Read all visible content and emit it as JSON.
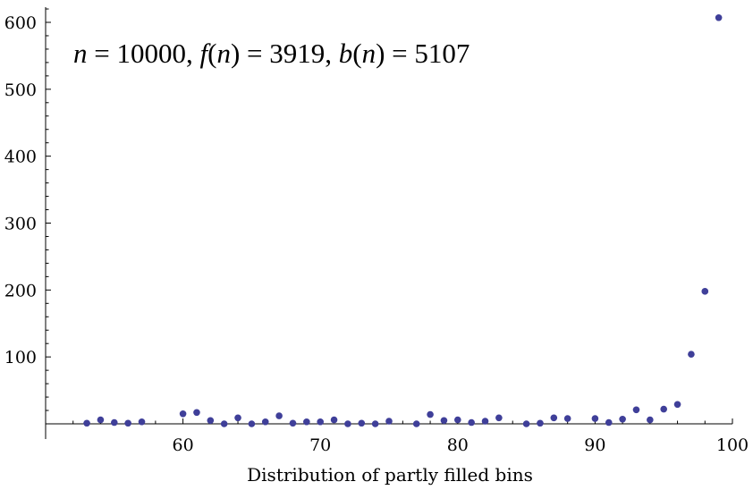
{
  "chart_data": {
    "type": "scatter",
    "title": "",
    "xlabel": "Distribution of partly filled bins",
    "ylabel": "",
    "xlim": [
      50,
      100
    ],
    "ylim": [
      -20,
      620
    ],
    "x_ticks": [
      60,
      70,
      80,
      90,
      100
    ],
    "x_tick_labels": [
      "60",
      "70",
      "80",
      "90",
      "100"
    ],
    "y_ticks": [
      100,
      200,
      300,
      400,
      500,
      600
    ],
    "y_tick_labels": [
      "100",
      "200",
      "300",
      "400",
      "500",
      "600"
    ],
    "grid": false,
    "point_color": "#3f3f99",
    "annotation": {
      "n_name": "n",
      "n_value": "10000",
      "f_name": "f",
      "f_arg": "n",
      "f_value": "3919",
      "b_name": "b",
      "b_arg": "n",
      "b_value": "5107"
    },
    "points": [
      [
        53,
        1
      ],
      [
        54,
        6
      ],
      [
        55,
        2
      ],
      [
        56,
        1
      ],
      [
        57,
        3
      ],
      [
        60,
        15
      ],
      [
        61,
        17
      ],
      [
        62,
        5
      ],
      [
        63,
        0
      ],
      [
        64,
        9
      ],
      [
        65,
        0
      ],
      [
        66,
        3
      ],
      [
        67,
        12
      ],
      [
        68,
        1
      ],
      [
        69,
        3
      ],
      [
        70,
        3
      ],
      [
        71,
        6
      ],
      [
        72,
        0
      ],
      [
        73,
        1
      ],
      [
        74,
        0
      ],
      [
        75,
        4
      ],
      [
        77,
        0
      ],
      [
        78,
        14
      ],
      [
        79,
        5
      ],
      [
        80,
        6
      ],
      [
        81,
        2
      ],
      [
        82,
        4
      ],
      [
        83,
        9
      ],
      [
        85,
        0
      ],
      [
        86,
        1
      ],
      [
        87,
        9
      ],
      [
        88,
        8
      ],
      [
        90,
        8
      ],
      [
        91,
        2
      ],
      [
        92,
        7
      ],
      [
        93,
        21
      ],
      [
        94,
        6
      ],
      [
        95,
        22
      ],
      [
        96,
        29
      ],
      [
        97,
        104
      ],
      [
        98,
        198
      ],
      [
        99,
        607
      ]
    ]
  }
}
